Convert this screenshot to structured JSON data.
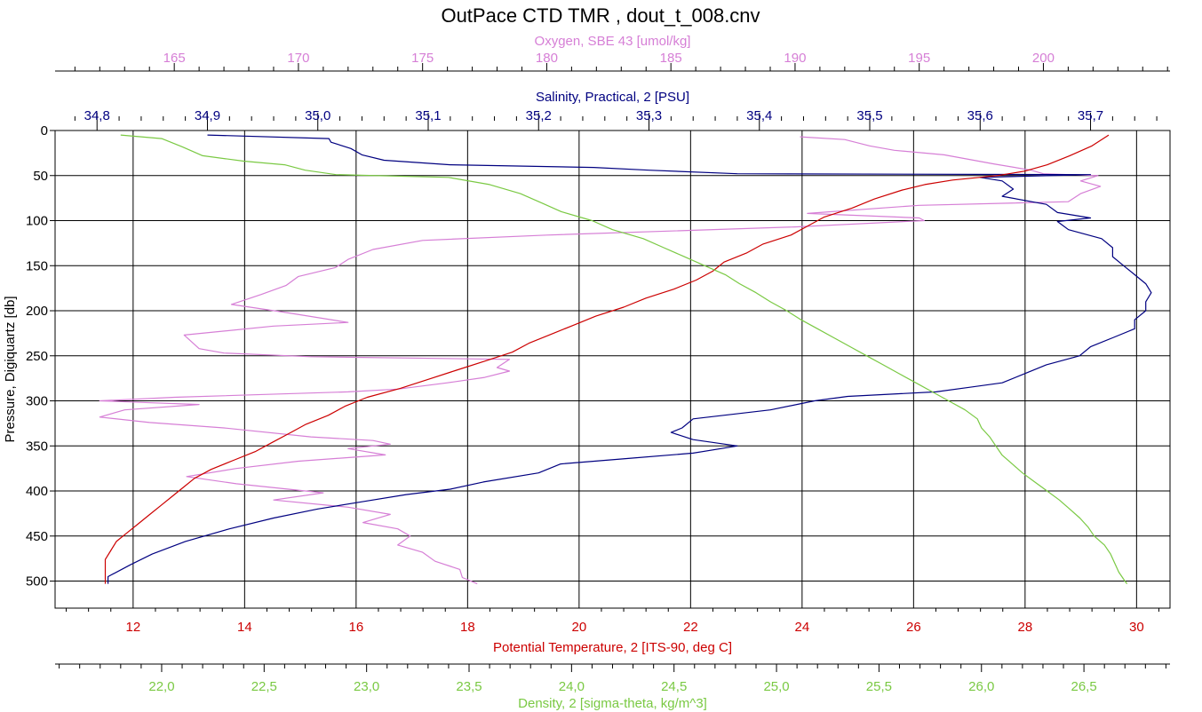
{
  "chart_data": {
    "type": "line",
    "title": "OutPace CTD TMR , dout_t_008.cnv",
    "grid": true,
    "y_axis": {
      "label": "Pressure, Digiquartz [db]",
      "range": [
        530,
        0
      ],
      "ticks": [
        0,
        50,
        100,
        150,
        200,
        250,
        300,
        350,
        400,
        450,
        500
      ],
      "tick_labels": [
        "0",
        "50",
        "100",
        "150",
        "200",
        "250",
        "300",
        "350",
        "400",
        "450",
        "500"
      ],
      "color": "#000000"
    },
    "x_axes": [
      {
        "id": "oxygen",
        "label": "Oxygen, SBE 43 [umol/kg]",
        "position": "top",
        "color": "#d67fd6",
        "range": [
          160.2,
          205.1
        ],
        "ticks": [
          165,
          170,
          175,
          180,
          185,
          190,
          195,
          200
        ],
        "tick_labels": [
          "165",
          "170",
          "175",
          "180",
          "185",
          "190",
          "195",
          "200"
        ]
      },
      {
        "id": "salinity",
        "label": "Salinity, Practical, 2 [PSU]",
        "position": "top",
        "color": "#000080",
        "range": [
          34.762,
          35.772
        ],
        "ticks": [
          34.8,
          34.9,
          35.0,
          35.1,
          35.2,
          35.3,
          35.4,
          35.5,
          35.6,
          35.7
        ],
        "tick_labels": [
          "34,8",
          "34,9",
          "35,0",
          "35,1",
          "35,2",
          "35,3",
          "35,4",
          "35,5",
          "35,6",
          "35,7"
        ]
      },
      {
        "id": "temperature",
        "label": "Potential Temperature, 2 [ITS-90, deg C]",
        "position": "bottom",
        "color": "#cc0000",
        "range": [
          10.6,
          30.6
        ],
        "ticks": [
          12,
          14,
          16,
          18,
          20,
          22,
          24,
          26,
          28,
          30
        ],
        "tick_labels": [
          "12",
          "14",
          "16",
          "18",
          "20",
          "22",
          "24",
          "26",
          "28",
          "30"
        ]
      },
      {
        "id": "density",
        "label": "Density, 2 [sigma-theta, kg/m^3]",
        "position": "bottom",
        "color": "#7ac943",
        "range": [
          21.48,
          26.92
        ],
        "ticks": [
          22.0,
          22.5,
          23.0,
          23.5,
          24.0,
          24.5,
          25.0,
          25.5,
          26.0,
          26.5
        ],
        "tick_labels": [
          "22,0",
          "22,5",
          "23,0",
          "23,5",
          "24,0",
          "24,5",
          "25,0",
          "25,5",
          "26,0",
          "26,5"
        ]
      }
    ],
    "series": [
      {
        "axis": "oxygen",
        "color": "#d67fd6",
        "points": [
          [
            190.2,
            7
          ],
          [
            192,
            10
          ],
          [
            193,
            17
          ],
          [
            194,
            22
          ],
          [
            196,
            27
          ],
          [
            197,
            32
          ],
          [
            198,
            37
          ],
          [
            199.5,
            44
          ],
          [
            200,
            48
          ],
          [
            202.2,
            50
          ],
          [
            201.5,
            56
          ],
          [
            202.3,
            62
          ],
          [
            201.5,
            70
          ],
          [
            201,
            79
          ],
          [
            195,
            83
          ],
          [
            190.5,
            92
          ],
          [
            195,
            97
          ],
          [
            195.2,
            100
          ],
          [
            190,
            107
          ],
          [
            180,
            116
          ],
          [
            175,
            122
          ],
          [
            173,
            132
          ],
          [
            172,
            143
          ],
          [
            171.5,
            152
          ],
          [
            170,
            162
          ],
          [
            169.5,
            172
          ],
          [
            168.5,
            182
          ],
          [
            167.3,
            193
          ],
          [
            169.5,
            202
          ],
          [
            172,
            213
          ],
          [
            169,
            217
          ],
          [
            165.4,
            227
          ],
          [
            166,
            242
          ],
          [
            167,
            247
          ],
          [
            170.5,
            251
          ],
          [
            178.5,
            254
          ],
          [
            178,
            263
          ],
          [
            178.5,
            267
          ],
          [
            177.5,
            274
          ],
          [
            176,
            280
          ],
          [
            174,
            287
          ],
          [
            172,
            290
          ],
          [
            165,
            296
          ],
          [
            162,
            300
          ],
          [
            166,
            304
          ],
          [
            163,
            310
          ],
          [
            162,
            318
          ],
          [
            164,
            324
          ],
          [
            167,
            330
          ],
          [
            170.5,
            340
          ],
          [
            173,
            344
          ],
          [
            173.7,
            348
          ],
          [
            172,
            353
          ],
          [
            173.5,
            360
          ],
          [
            170,
            367
          ],
          [
            167.5,
            375
          ],
          [
            165.5,
            384
          ],
          [
            167.5,
            392
          ],
          [
            171,
            402
          ],
          [
            169,
            410
          ],
          [
            172,
            418
          ],
          [
            173.7,
            426
          ],
          [
            172.6,
            435
          ],
          [
            174,
            442
          ],
          [
            174.5,
            450
          ],
          [
            174,
            460
          ],
          [
            175,
            468
          ],
          [
            175.5,
            478
          ],
          [
            176.5,
            487
          ],
          [
            176.6,
            496
          ],
          [
            177.2,
            503
          ]
        ]
      },
      {
        "axis": "salinity",
        "color": "#000080",
        "points": [
          [
            34.9,
            5
          ],
          [
            35.01,
            9
          ],
          [
            35.012,
            13
          ],
          [
            35.03,
            20
          ],
          [
            35.04,
            27
          ],
          [
            35.06,
            33
          ],
          [
            35.12,
            38
          ],
          [
            35.25,
            41
          ],
          [
            35.3,
            44
          ],
          [
            35.38,
            48
          ],
          [
            35.7,
            49
          ],
          [
            35.6,
            52
          ],
          [
            35.62,
            56
          ],
          [
            35.63,
            65
          ],
          [
            35.62,
            73
          ],
          [
            35.66,
            82
          ],
          [
            35.67,
            91
          ],
          [
            35.7,
            97
          ],
          [
            35.67,
            101
          ],
          [
            35.68,
            110
          ],
          [
            35.71,
            120
          ],
          [
            35.72,
            130
          ],
          [
            35.72,
            140
          ],
          [
            35.73,
            150
          ],
          [
            35.74,
            160
          ],
          [
            35.75,
            170
          ],
          [
            35.755,
            180
          ],
          [
            35.75,
            190
          ],
          [
            35.75,
            200
          ],
          [
            35.74,
            210
          ],
          [
            35.74,
            220
          ],
          [
            35.72,
            230
          ],
          [
            35.7,
            240
          ],
          [
            35.69,
            250
          ],
          [
            35.66,
            260
          ],
          [
            35.64,
            270
          ],
          [
            35.62,
            280
          ],
          [
            35.59,
            285
          ],
          [
            35.56,
            290
          ],
          [
            35.48,
            295
          ],
          [
            35.45,
            300
          ],
          [
            35.41,
            310
          ],
          [
            35.34,
            320
          ],
          [
            35.33,
            330
          ],
          [
            35.32,
            335
          ],
          [
            35.34,
            343
          ],
          [
            35.38,
            350
          ],
          [
            35.34,
            358
          ],
          [
            35.28,
            364
          ],
          [
            35.22,
            370
          ],
          [
            35.2,
            380
          ],
          [
            35.15,
            390
          ],
          [
            35.12,
            398
          ],
          [
            35.08,
            404
          ],
          [
            35.04,
            412
          ],
          [
            35,
            420
          ],
          [
            34.96,
            430
          ],
          [
            34.92,
            442
          ],
          [
            34.88,
            456
          ],
          [
            34.85,
            470
          ],
          [
            34.83,
            482
          ],
          [
            34.81,
            495
          ],
          [
            34.81,
            503
          ]
        ]
      },
      {
        "axis": "temperature",
        "color": "#cc0000",
        "points": [
          [
            29.5,
            5
          ],
          [
            29.2,
            17
          ],
          [
            28.8,
            28
          ],
          [
            28.4,
            38
          ],
          [
            28,
            45
          ],
          [
            27.5,
            50
          ],
          [
            26.7,
            55
          ],
          [
            26.2,
            60
          ],
          [
            25.8,
            66
          ],
          [
            25.3,
            76
          ],
          [
            24.9,
            86
          ],
          [
            24.4,
            96
          ],
          [
            24.1,
            106
          ],
          [
            23.8,
            116
          ],
          [
            23.3,
            126
          ],
          [
            23,
            136
          ],
          [
            22.6,
            146
          ],
          [
            22.4,
            156
          ],
          [
            22.1,
            166
          ],
          [
            21.7,
            176
          ],
          [
            21.2,
            186
          ],
          [
            20.8,
            196
          ],
          [
            20.3,
            206
          ],
          [
            19.9,
            216
          ],
          [
            19.5,
            226
          ],
          [
            19.1,
            236
          ],
          [
            18.8,
            246
          ],
          [
            18.3,
            256
          ],
          [
            17.8,
            266
          ],
          [
            17.3,
            276
          ],
          [
            16.8,
            286
          ],
          [
            16.2,
            296
          ],
          [
            15.8,
            306
          ],
          [
            15.5,
            316
          ],
          [
            15.1,
            326
          ],
          [
            14.8,
            336
          ],
          [
            14.5,
            346
          ],
          [
            14.2,
            356
          ],
          [
            13.8,
            366
          ],
          [
            13.4,
            376
          ],
          [
            13.1,
            386
          ],
          [
            12.9,
            396
          ],
          [
            12.7,
            406
          ],
          [
            12.5,
            416
          ],
          [
            12.3,
            426
          ],
          [
            12.1,
            436
          ],
          [
            11.9,
            446
          ],
          [
            11.7,
            456
          ],
          [
            11.6,
            466
          ],
          [
            11.5,
            476
          ],
          [
            11.5,
            486
          ],
          [
            11.5,
            496
          ],
          [
            11.5,
            503
          ]
        ]
      },
      {
        "axis": "density",
        "color": "#7ac943",
        "points": [
          [
            21.8,
            5
          ],
          [
            22.0,
            9
          ],
          [
            22.1,
            18
          ],
          [
            22.2,
            28
          ],
          [
            22.4,
            34
          ],
          [
            22.6,
            38
          ],
          [
            22.7,
            44
          ],
          [
            22.85,
            49
          ],
          [
            23.4,
            52
          ],
          [
            23.6,
            60
          ],
          [
            23.75,
            70
          ],
          [
            23.85,
            80
          ],
          [
            23.95,
            90
          ],
          [
            24.1,
            100
          ],
          [
            24.2,
            110
          ],
          [
            24.35,
            120
          ],
          [
            24.45,
            130
          ],
          [
            24.55,
            140
          ],
          [
            24.65,
            150
          ],
          [
            24.75,
            160
          ],
          [
            24.82,
            170
          ],
          [
            24.9,
            180
          ],
          [
            24.97,
            190
          ],
          [
            25.05,
            200
          ],
          [
            25.12,
            210
          ],
          [
            25.2,
            220
          ],
          [
            25.28,
            230
          ],
          [
            25.36,
            240
          ],
          [
            25.44,
            250
          ],
          [
            25.52,
            260
          ],
          [
            25.6,
            270
          ],
          [
            25.68,
            280
          ],
          [
            25.76,
            290
          ],
          [
            25.84,
            300
          ],
          [
            25.92,
            310
          ],
          [
            25.98,
            320
          ],
          [
            26.0,
            330
          ],
          [
            26.04,
            340
          ],
          [
            26.07,
            350
          ],
          [
            26.1,
            360
          ],
          [
            26.15,
            370
          ],
          [
            26.2,
            380
          ],
          [
            26.26,
            390
          ],
          [
            26.32,
            400
          ],
          [
            26.38,
            410
          ],
          [
            26.43,
            420
          ],
          [
            26.48,
            430
          ],
          [
            26.52,
            440
          ],
          [
            26.55,
            450
          ],
          [
            26.6,
            460
          ],
          [
            26.63,
            470
          ],
          [
            26.65,
            480
          ],
          [
            26.67,
            490
          ],
          [
            26.7,
            500
          ],
          [
            26.71,
            503
          ]
        ]
      }
    ]
  }
}
